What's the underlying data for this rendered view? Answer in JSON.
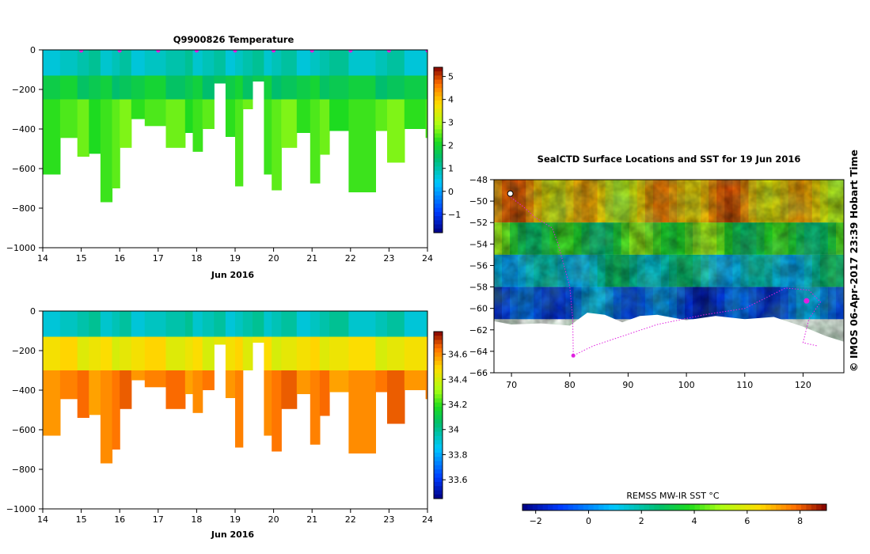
{
  "chart_data": [
    {
      "type": "heatmap",
      "title": "Q9900826  Temperature",
      "xlabel": "Jun 2016",
      "ylabel": "",
      "xlim": [
        14,
        24
      ],
      "ylim": [
        -1000,
        0
      ],
      "x_ticks": [
        "14",
        "15",
        "16",
        "17",
        "18",
        "19",
        "20",
        "21",
        "22",
        "23",
        "24"
      ],
      "y_ticks": [
        "0",
        "−200",
        "−400",
        "−600",
        "−800",
        "−1000"
      ],
      "colorbar_ticks": [
        "5",
        "4",
        "3",
        "2",
        "1",
        "0",
        "−1"
      ],
      "colorbar_range": [
        -1.8,
        5.4
      ],
      "surfacing_markers": [
        15,
        16,
        17,
        18,
        19,
        20,
        21,
        22,
        23,
        24
      ],
      "layers": [
        {
          "name": "surface",
          "top_m": 0,
          "bottom_m": -130,
          "value": 0.9
        },
        {
          "name": "thermocline",
          "top_m": -130,
          "bottom_m": -250,
          "value": 1.7
        },
        {
          "name": "deep",
          "top_m": -250,
          "bottom_m": "profile_depth",
          "value": 2.4
        }
      ],
      "profile_depths_m": [
        {
          "day": 14.0,
          "depth": -630
        },
        {
          "day": 14.45,
          "depth": -445
        },
        {
          "day": 14.9,
          "depth": -540
        },
        {
          "day": 15.2,
          "depth": -525
        },
        {
          "day": 15.5,
          "depth": -770
        },
        {
          "day": 15.8,
          "depth": -700
        },
        {
          "day": 16.0,
          "depth": -495
        },
        {
          "day": 16.3,
          "depth": -350
        },
        {
          "day": 16.65,
          "depth": -385
        },
        {
          "day": 17.2,
          "depth": -495
        },
        {
          "day": 17.7,
          "depth": -420
        },
        {
          "day": 17.9,
          "depth": -515
        },
        {
          "day": 18.15,
          "depth": -400
        },
        {
          "day": 18.45,
          "depth": -170
        },
        {
          "day": 18.75,
          "depth": -440
        },
        {
          "day": 19.0,
          "depth": -690
        },
        {
          "day": 19.2,
          "depth": -300
        },
        {
          "day": 19.45,
          "depth": -160
        },
        {
          "day": 19.75,
          "depth": -630
        },
        {
          "day": 19.95,
          "depth": -710
        },
        {
          "day": 20.2,
          "depth": -495
        },
        {
          "day": 20.6,
          "depth": -420
        },
        {
          "day": 20.95,
          "depth": -675
        },
        {
          "day": 21.2,
          "depth": -530
        },
        {
          "day": 21.45,
          "depth": -410
        },
        {
          "day": 21.95,
          "depth": -720
        },
        {
          "day": 22.65,
          "depth": -410
        },
        {
          "day": 22.95,
          "depth": -570
        },
        {
          "day": 23.4,
          "depth": -400
        },
        {
          "day": 23.95,
          "depth": -445
        }
      ]
    },
    {
      "type": "heatmap",
      "title": "",
      "xlabel": "Jun 2016",
      "ylabel": "",
      "xlim": [
        14,
        24
      ],
      "ylim": [
        -1000,
        0
      ],
      "x_ticks": [
        "14",
        "15",
        "16",
        "17",
        "18",
        "19",
        "20",
        "21",
        "22",
        "23",
        "24"
      ],
      "y_ticks": [
        "0",
        "−200",
        "−400",
        "−600",
        "−800",
        "−1000"
      ],
      "colorbar_ticks": [
        "34.6",
        "34.4",
        "34.2",
        "34",
        "33.8",
        "33.6"
      ],
      "colorbar_range": [
        33.45,
        34.78
      ],
      "layers": [
        {
          "name": "surface",
          "top_m": 0,
          "bottom_m": -130,
          "value": 33.95
        },
        {
          "name": "halocline",
          "top_m": -130,
          "bottom_m": -300,
          "value": 34.45
        },
        {
          "name": "deep",
          "top_m": -300,
          "bottom_m": "profile_depth",
          "value": 34.62
        }
      ]
    },
    {
      "type": "heatmap",
      "title": "SealCTD Surface Locations and SST for 19 Jun 2016",
      "xlabel": "",
      "ylabel": "",
      "xlim": [
        67,
        127
      ],
      "ylim": [
        -66,
        -48
      ],
      "x_ticks": [
        "70",
        "80",
        "90",
        "100",
        "110",
        "120"
      ],
      "y_ticks": [
        "−48",
        "−50",
        "−52",
        "−54",
        "−56",
        "−58",
        "−60",
        "−62",
        "−64",
        "−66"
      ],
      "colorbar_label": "REMSS MW-IR SST °C",
      "colorbar_ticks": [
        "−2",
        "0",
        "2",
        "4",
        "6",
        "8"
      ],
      "colorbar_range": [
        -2.5,
        9
      ],
      "sst_bands": [
        {
          "lat_top": -48,
          "lat_bottom": -52,
          "value": 6.8
        },
        {
          "lat_top": -52,
          "lat_bottom": -55,
          "value": 3.8
        },
        {
          "lat_top": -55,
          "lat_bottom": -58,
          "value": 1.6
        },
        {
          "lat_top": -58,
          "lat_bottom": -61,
          "value": -0.6
        }
      ],
      "ice_edge": [
        [
          67,
          -61.2
        ],
        [
          70,
          -61.5
        ],
        [
          75,
          -61.4
        ],
        [
          80,
          -61.6
        ],
        [
          83,
          -60.4
        ],
        [
          86,
          -60.6
        ],
        [
          89,
          -61.3
        ],
        [
          92,
          -60.7
        ],
        [
          95,
          -60.6
        ],
        [
          100,
          -61.1
        ],
        [
          105,
          -60.7
        ],
        [
          110,
          -61.0
        ],
        [
          115,
          -60.8
        ],
        [
          120,
          -61.7
        ],
        [
          124,
          -62.6
        ],
        [
          127,
          -63.1
        ]
      ],
      "track": [
        [
          69.5,
          -49.5
        ],
        [
          72,
          -50.5
        ],
        [
          74,
          -51.5
        ],
        [
          77,
          -52.5
        ],
        [
          78,
          -54
        ],
        [
          79,
          -56
        ],
        [
          80,
          -58
        ],
        [
          80.5,
          -61
        ],
        [
          80.6,
          -64.4
        ],
        [
          84,
          -63.5
        ],
        [
          95,
          -61.5
        ],
        [
          103,
          -60.6
        ],
        [
          110,
          -60
        ],
        [
          117,
          -58.1
        ],
        [
          121,
          -58.3
        ],
        [
          123,
          -59.4
        ],
        [
          121,
          -61
        ],
        [
          120,
          -63.2
        ],
        [
          122.5,
          -63.5
        ]
      ],
      "watermark": "©  IMOS 06-Apr-2017 23:39 Hobart Time"
    }
  ],
  "colors": {
    "track": "#e020e0",
    "marker": "#e020e0",
    "ice": "#ffffff",
    "axis": "#000000"
  }
}
